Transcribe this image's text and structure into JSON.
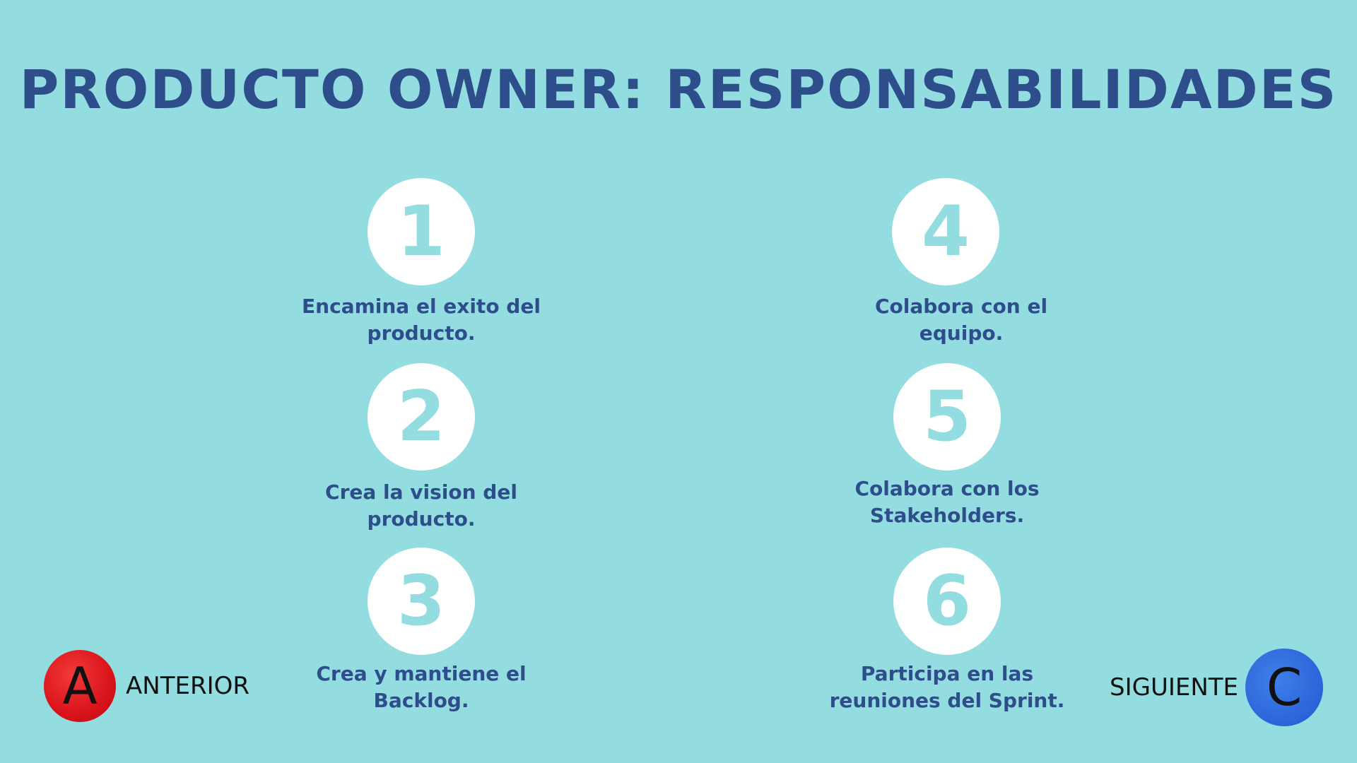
{
  "title": "PRODUCTO OWNER: RESPONSABILIDADES",
  "items": [
    {
      "number": "1",
      "line1": "Encamina el exito del",
      "line2": "producto."
    },
    {
      "number": "2",
      "line1": "Crea la vision del",
      "line2": "producto."
    },
    {
      "number": "3",
      "line1": "Crea y mantiene el",
      "line2": "Backlog."
    },
    {
      "number": "4",
      "line1": "Colabora con el",
      "line2": "equipo."
    },
    {
      "number": "5",
      "line1": "Colabora con los",
      "line2": "Stakeholders."
    },
    {
      "number": "6",
      "line1": "Participa en las",
      "line2": "reuniones del Sprint."
    }
  ],
  "nav": {
    "prev_letter": "A",
    "prev_label": "ANTERIOR",
    "next_letter": "C",
    "next_label": "SIGUIENTE"
  },
  "colors": {
    "background": "#93dcdf",
    "title": "#2d4e8a",
    "circle": "#ffffff",
    "prev_button": "#d9141a",
    "next_button": "#2b64d8"
  }
}
